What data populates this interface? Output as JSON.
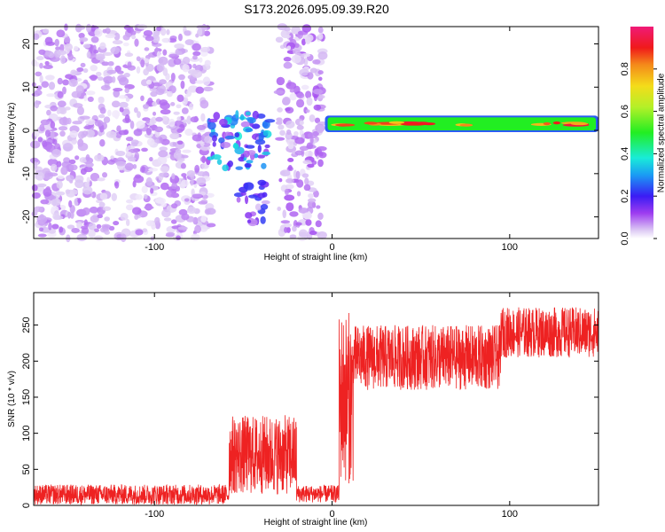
{
  "title": "S173.2026.095.09.39.R20",
  "chart_data": [
    {
      "type": "heatmap",
      "xlabel": "Height of straight line (km)",
      "ylabel": "Frequency (Hz)",
      "xlim": [
        -168,
        150
      ],
      "ylim": [
        -25,
        24
      ],
      "xticks": [
        -100,
        0,
        100
      ],
      "yticks": [
        -20,
        -10,
        0,
        10,
        20
      ],
      "colorbar": {
        "label": "Normalized spectral amplitude",
        "range": [
          0,
          1
        ],
        "ticks": [
          "0.0",
          "0.2",
          "0.4",
          "0.6",
          "0.8"
        ]
      },
      "regions": [
        {
          "x": [
            -168,
            -68
          ],
          "y": [
            -25,
            24
          ],
          "level": 0.05
        },
        {
          "x": [
            -70,
            -35
          ],
          "y": [
            -9,
            4
          ],
          "level": 0.2
        },
        {
          "x": [
            -53,
            -37
          ],
          "y": [
            -22,
            -12
          ],
          "level": 0.12
        },
        {
          "x": [
            -30,
            -5
          ],
          "y": [
            -25,
            24
          ],
          "level": 0.06
        },
        {
          "x": [
            -4,
            150
          ],
          "y": [
            0,
            3
          ],
          "level": 0.85
        }
      ]
    },
    {
      "type": "line",
      "xlabel": "Height of straight line (km)",
      "ylabel": "SNR (10 * v/v)",
      "xlim": [
        -168,
        150
      ],
      "ylim": [
        0,
        295
      ],
      "xticks": [
        -100,
        0,
        100
      ],
      "yticks": [
        0,
        50,
        100,
        150,
        200,
        250
      ],
      "color": "#ee2222",
      "segments": [
        {
          "x": [
            -168,
            -58
          ],
          "mean": 15,
          "spread": 14
        },
        {
          "x": [
            -58,
            -20
          ],
          "mean": 70,
          "spread": 55
        },
        {
          "x": [
            -20,
            4
          ],
          "mean": 16,
          "spread": 12
        },
        {
          "x": [
            4,
            12
          ],
          "mean": 150,
          "spread": 120
        },
        {
          "x": [
            12,
            95
          ],
          "mean": 205,
          "spread": 45
        },
        {
          "x": [
            95,
            150
          ],
          "mean": 240,
          "spread": 35
        }
      ]
    }
  ]
}
